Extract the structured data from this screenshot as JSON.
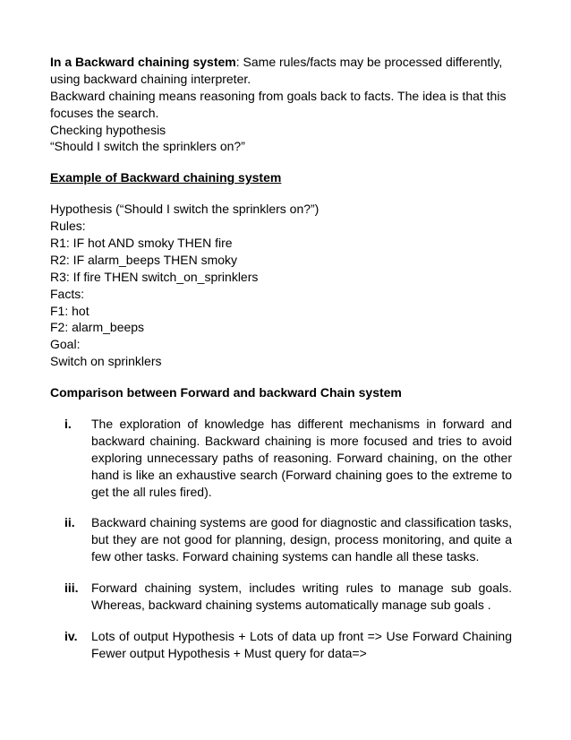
{
  "intro": {
    "title_bold": "In a Backward chaining system",
    "title_rest": ": Same rules/facts may be processed differently, using backward chaining interpreter.",
    "line2": "Backward chaining means reasoning from goals back to facts. The idea is that this focuses the search.",
    "line3": "Checking hypothesis",
    "line4": "“Should I switch the sprinklers on?”"
  },
  "example": {
    "heading": "Example of Backward chaining system",
    "hyp": "Hypothesis (“Should I switch the sprinklers on?”)",
    "rules_label": "Rules:",
    "r1": "R1: IF hot AND smoky THEN fire",
    "r2": "R2: IF alarm_beeps THEN smoky",
    "r3": "R3: If fire THEN switch_on_sprinklers",
    "facts_label": "Facts:",
    "f1": "F1: hot",
    "f2": "F2: alarm_beeps",
    "goal_label": "Goal:",
    "goal": "Switch on sprinklers"
  },
  "comparison": {
    "heading": "Comparison between Forward and backward Chain system",
    "items": [
      {
        "marker": "i.",
        "text": "The exploration of knowledge has different mechanisms in forward and backward chaining. Backward chaining is more focused and tries to avoid exploring unnecessary paths of reasoning. Forward chaining, on the other hand is like an exhaustive search (Forward chaining goes to the extreme to get the all rules fired)."
      },
      {
        "marker": "ii.",
        "text": "Backward chaining systems are good for diagnostic and classification tasks, but they are not good for planning, design, process monitoring, and quite a few other tasks. Forward chaining systems can handle all these tasks."
      },
      {
        "marker": "iii.",
        "text": "Forward chaining system, includes writing rules to manage sub goals. Whereas, backward chaining systems automatically manage sub goals ."
      },
      {
        "marker": "iv.",
        "text": "Lots of output Hypothesis + Lots of data up front => Use Forward Chaining Fewer output Hypothesis + Must query for data=>"
      }
    ]
  }
}
